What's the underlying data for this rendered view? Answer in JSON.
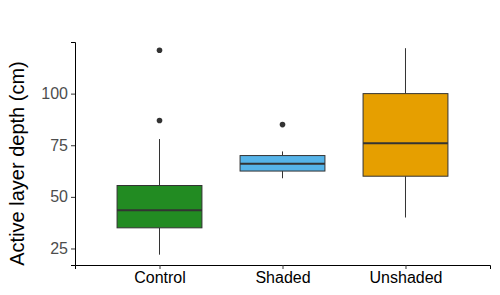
{
  "chart_data": {
    "type": "box",
    "y_label": "Active layer depth (cm)",
    "categories": [
      "Control",
      "Shaded",
      "Unshaded"
    ],
    "colors": [
      "#228b22",
      "#56b4e9",
      "#e69f00"
    ],
    "boxes": [
      {
        "whisker_low": 22,
        "q1": 35,
        "median": 43.5,
        "q3": 55.5,
        "whisker_high": 78,
        "outliers": [
          87,
          121
        ]
      },
      {
        "whisker_low": 59,
        "q1": 62.5,
        "median": 66,
        "q3": 70,
        "whisker_high": 72,
        "outliers": [
          85
        ]
      },
      {
        "whisker_low": 40,
        "q1": 60,
        "median": 76,
        "q3": 100,
        "whisker_high": 122,
        "outliers": []
      }
    ],
    "ylim": [
      17,
      125
    ],
    "yticks": [
      25,
      50,
      75,
      100
    ]
  }
}
